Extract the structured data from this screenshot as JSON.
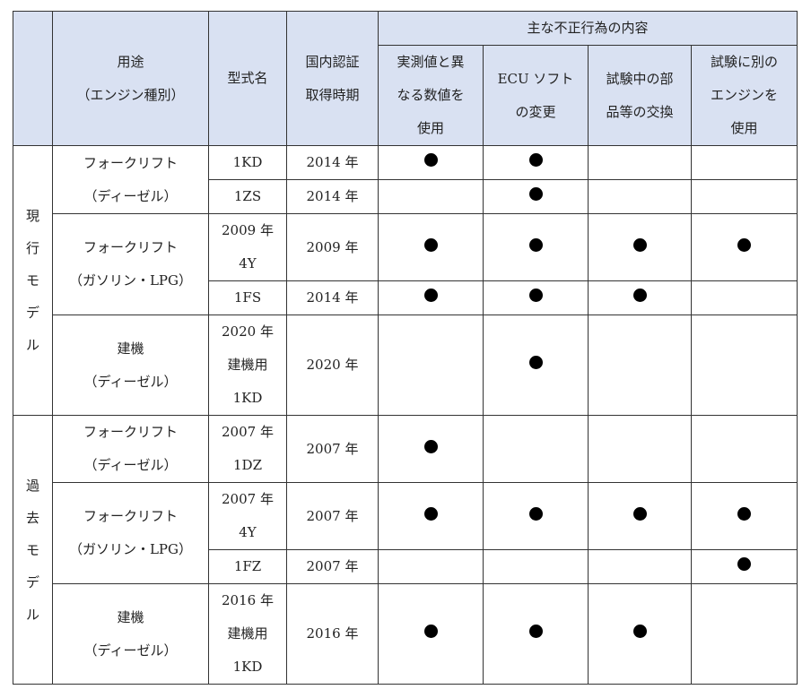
{
  "header": {
    "group": "主な不正行為の内容",
    "use": [
      "用途",
      "（エンジン種別）"
    ],
    "model": "型式名",
    "cert": [
      "国内認証",
      "取得時期"
    ],
    "c1": [
      "実測値と異",
      "なる数値を",
      "使用"
    ],
    "c2": [
      "ECU ソフト",
      "の変更"
    ],
    "c3": [
      "試験中の部",
      "品等の交換"
    ],
    "c4": [
      "試験に別の",
      "エンジンを",
      "使用"
    ]
  },
  "sections": {
    "current": [
      "現",
      "行",
      "モ",
      "デ",
      "ル"
    ],
    "past": [
      "過",
      "去",
      "モ",
      "デ",
      "ル"
    ]
  },
  "uses": {
    "fl_diesel": [
      "フォークリフト",
      "（ディーゼル）"
    ],
    "fl_gas": [
      "フォークリフト",
      "（ガソリン・LPG）"
    ],
    "const": [
      "建機",
      "（ディーゼル）"
    ]
  },
  "rows": [
    {
      "model": [
        "1KD"
      ],
      "cert": "2014 年",
      "marks": [
        true,
        true,
        false,
        false
      ]
    },
    {
      "model": [
        "1ZS"
      ],
      "cert": "2014 年",
      "marks": [
        false,
        true,
        false,
        false
      ]
    },
    {
      "model": [
        "2009 年",
        "4Y"
      ],
      "cert": "2009 年",
      "marks": [
        true,
        true,
        true,
        true
      ]
    },
    {
      "model": [
        "1FS"
      ],
      "cert": "2014 年",
      "marks": [
        true,
        true,
        true,
        false
      ]
    },
    {
      "model": [
        "2020 年",
        "建機用",
        "1KD"
      ],
      "cert": "2020 年",
      "marks": [
        false,
        true,
        false,
        false
      ]
    },
    {
      "model": [
        "2007 年",
        "1DZ"
      ],
      "cert": "2007 年",
      "marks": [
        true,
        false,
        false,
        false
      ]
    },
    {
      "model": [
        "2007 年",
        "4Y"
      ],
      "cert": "2007 年",
      "marks": [
        true,
        true,
        true,
        true
      ]
    },
    {
      "model": [
        "1FZ"
      ],
      "cert": "2007 年",
      "marks": [
        false,
        false,
        false,
        true
      ]
    },
    {
      "model": [
        "2016 年",
        "建機用",
        "1KD"
      ],
      "cert": "2016 年",
      "marks": [
        true,
        true,
        true,
        false
      ]
    }
  ]
}
